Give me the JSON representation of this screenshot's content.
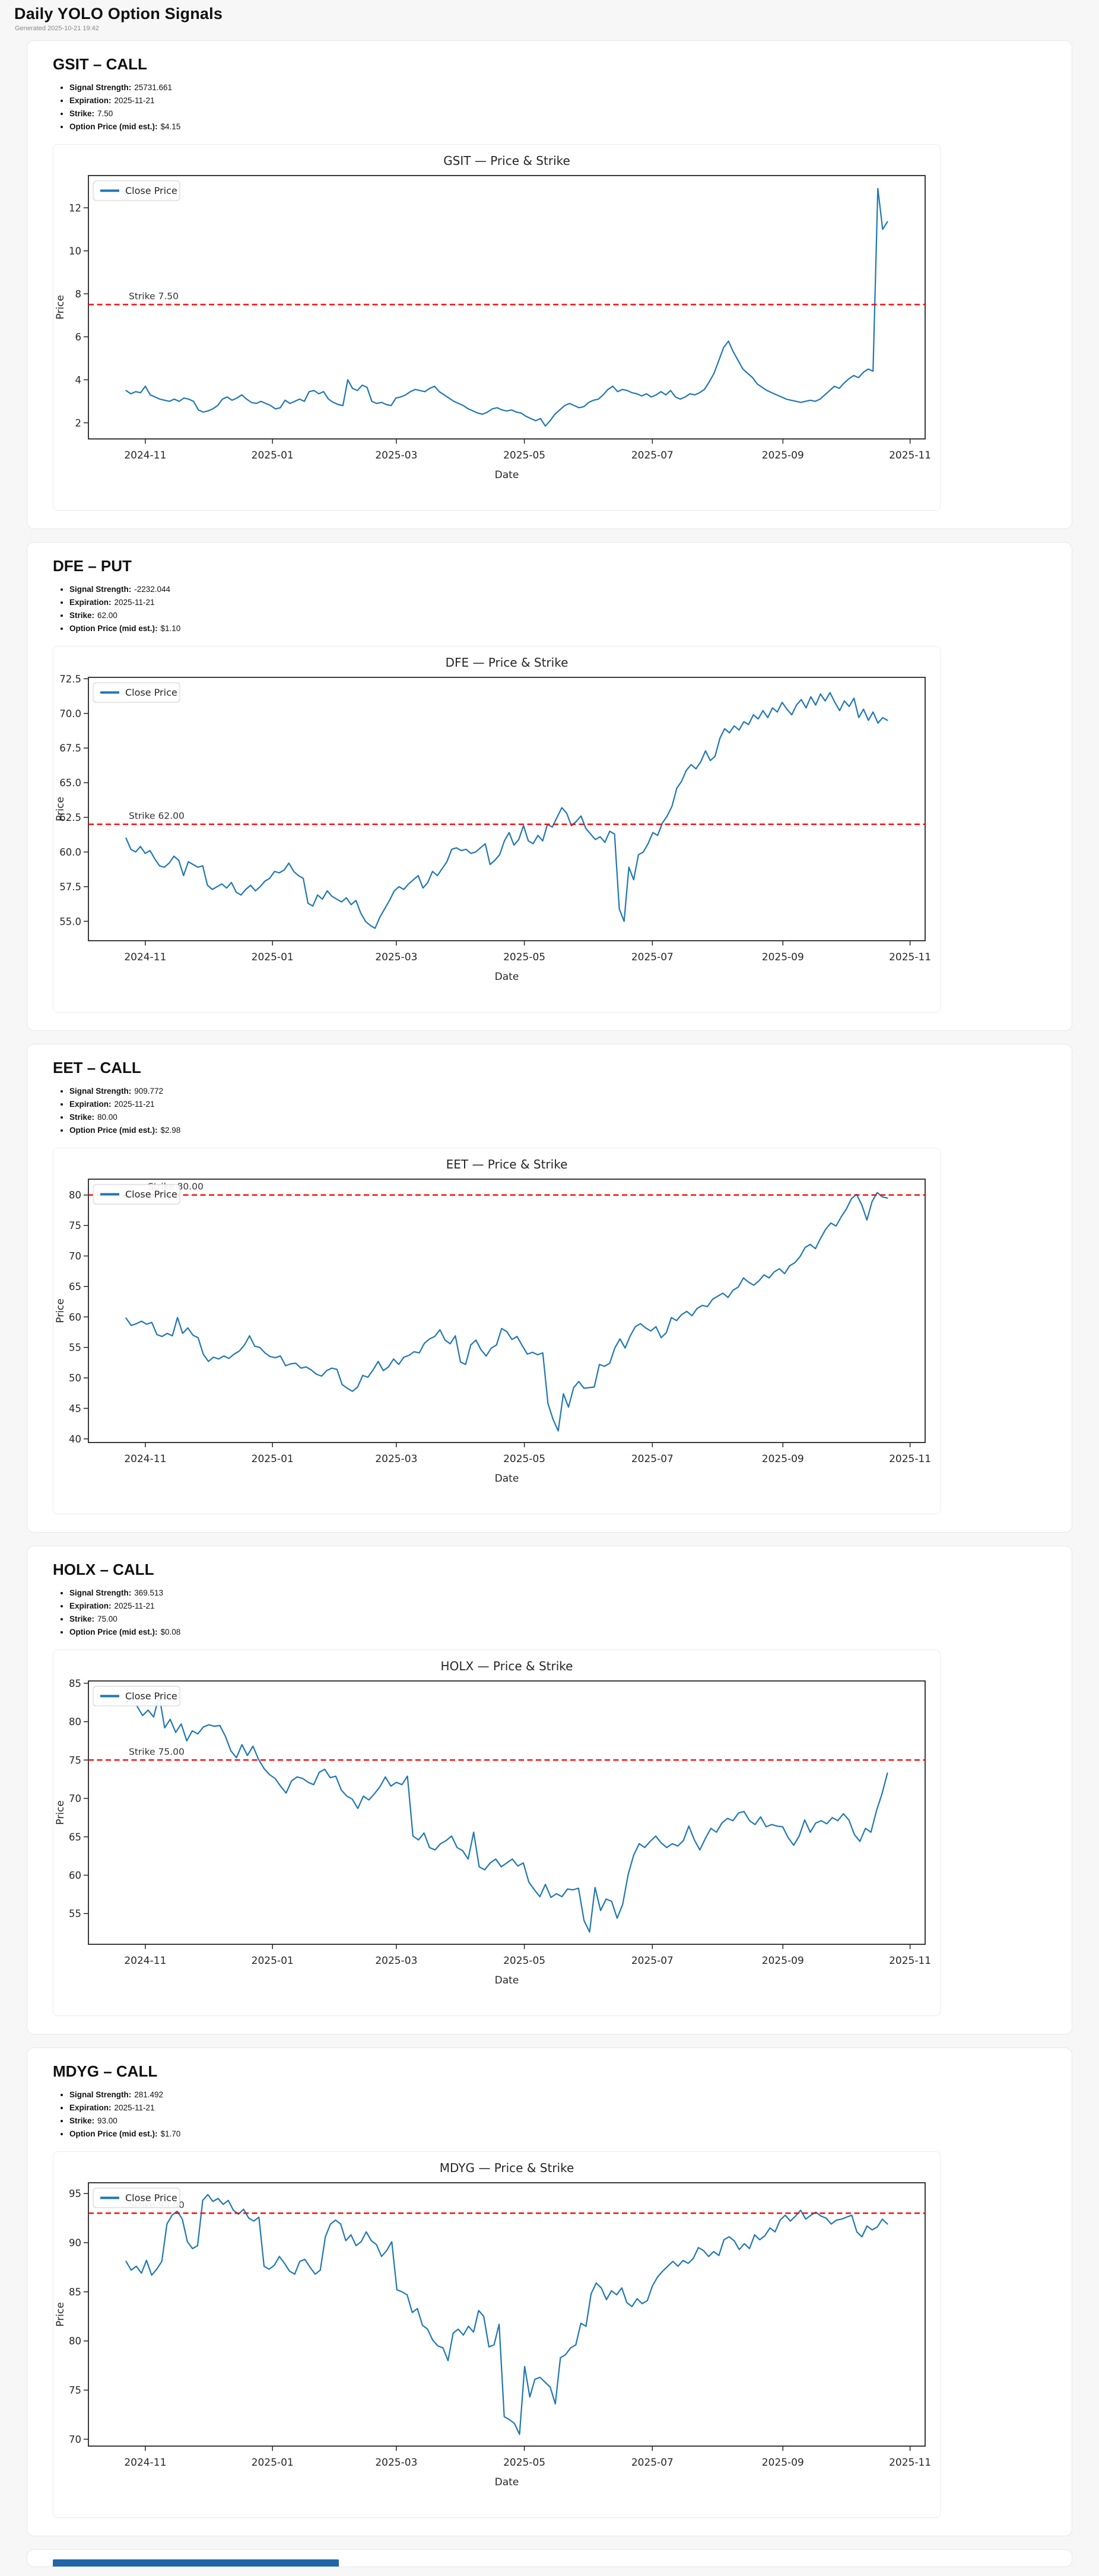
{
  "header": {
    "title": "Daily YOLO Option Signals",
    "generated": "Generated 2025-10-21 19:42"
  },
  "labels": {
    "signal_strength": "Signal Strength:",
    "expiration": "Expiration:",
    "strike": "Strike:",
    "option_price": "Option Price (mid est.):",
    "legend": "Close Price",
    "xlabel": "Date",
    "ylabel": "Price"
  },
  "colors": {
    "line": "#1f77b4",
    "strike_line": "#ff0000",
    "partial_bar": "#2066a8"
  },
  "cards": [
    {
      "title": "GSIT – CALL",
      "signal_strength": "25731.661",
      "expiration": "2025-11-21",
      "strike": "7.50",
      "option_price": "$4.15"
    },
    {
      "title": "DFE – PUT",
      "signal_strength": "-2232.044",
      "expiration": "2025-11-21",
      "strike": "62.00",
      "option_price": "$1.10"
    },
    {
      "title": "EET – CALL",
      "signal_strength": "909.772",
      "expiration": "2025-11-21",
      "strike": "80.00",
      "option_price": "$2.98"
    },
    {
      "title": "HOLX – CALL",
      "signal_strength": "369.513",
      "expiration": "2025-11-21",
      "strike": "75.00",
      "option_price": "$0.08"
    },
    {
      "title": "MDYG – CALL",
      "signal_strength": "281.492",
      "expiration": "2025-11-21",
      "strike": "93.00",
      "option_price": "$1.70"
    }
  ],
  "chart_data": [
    {
      "type": "line",
      "title": "GSIT — Price & Strike",
      "xlabel": "Date",
      "ylabel": "Price",
      "legend": "Close Price",
      "line_color": "#1f77b4",
      "strike_color": "#ff0000",
      "ylim": [
        1.25,
        13.5
      ],
      "yticks": [
        [
          2,
          "2"
        ],
        [
          4,
          "4"
        ],
        [
          6,
          "6"
        ],
        [
          8,
          "8"
        ],
        [
          10,
          "10"
        ],
        [
          12,
          "12"
        ]
      ],
      "xticks": [
        {
          "f": 0.068,
          "label": "2024-11"
        },
        {
          "f": 0.22,
          "label": "2025-01"
        },
        {
          "f": 0.368,
          "label": "2025-03"
        },
        {
          "f": 0.521,
          "label": "2025-05"
        },
        {
          "f": 0.674,
          "label": "2025-07"
        },
        {
          "f": 0.83,
          "label": "2025-09"
        },
        {
          "f": 0.982,
          "label": "2025-11"
        }
      ],
      "strike": 7.5,
      "strike_label": "Strike 7.50",
      "strike_label_dx": 68,
      "series_start": 0.045,
      "series_end": 0.955,
      "values": [
        3.5,
        3.35,
        3.45,
        3.4,
        3.7,
        3.3,
        3.2,
        3.1,
        3.05,
        3.0,
        3.1,
        3.0,
        3.15,
        3.1,
        3.0,
        2.6,
        2.5,
        2.55,
        2.65,
        2.8,
        3.1,
        3.2,
        3.05,
        3.15,
        3.3,
        3.1,
        2.95,
        2.9,
        3.0,
        2.9,
        2.8,
        2.65,
        2.7,
        3.05,
        2.9,
        3.0,
        3.1,
        3.0,
        3.45,
        3.5,
        3.35,
        3.45,
        3.1,
        2.95,
        2.85,
        2.8,
        4.0,
        3.6,
        3.5,
        3.75,
        3.65,
        3.0,
        2.9,
        2.95,
        2.85,
        2.8,
        3.15,
        3.2,
        3.3,
        3.45,
        3.55,
        3.5,
        3.45,
        3.6,
        3.7,
        3.45,
        3.3,
        3.15,
        3.0,
        2.9,
        2.8,
        2.65,
        2.55,
        2.45,
        2.4,
        2.5,
        2.65,
        2.7,
        2.6,
        2.55,
        2.6,
        2.5,
        2.45,
        2.3,
        2.2,
        2.1,
        2.2,
        1.85,
        2.1,
        2.4,
        2.6,
        2.8,
        2.9,
        2.8,
        2.7,
        2.75,
        2.95,
        3.05,
        3.1,
        3.3,
        3.55,
        3.7,
        3.45,
        3.55,
        3.5,
        3.4,
        3.35,
        3.25,
        3.35,
        3.2,
        3.3,
        3.45,
        3.3,
        3.5,
        3.2,
        3.1,
        3.2,
        3.35,
        3.3,
        3.4,
        3.55,
        3.9,
        4.3,
        4.9,
        5.5,
        5.8,
        5.3,
        4.9,
        4.5,
        4.3,
        4.1,
        3.8,
        3.65,
        3.5,
        3.4,
        3.3,
        3.2,
        3.1,
        3.05,
        3.0,
        2.95,
        3.0,
        3.05,
        3.0,
        3.1,
        3.3,
        3.5,
        3.7,
        3.6,
        3.85,
        4.05,
        4.2,
        4.1,
        4.35,
        4.5,
        4.4,
        12.9,
        11.0,
        11.35
      ]
    },
    {
      "type": "line",
      "title": "DFE — Price & Strike",
      "xlabel": "Date",
      "ylabel": "Price",
      "legend": "Close Price",
      "line_color": "#1f77b4",
      "strike_color": "#ff0000",
      "ylim": [
        53.6,
        72.6
      ],
      "yticks": [
        [
          55,
          "55.0"
        ],
        [
          57.5,
          "57.5"
        ],
        [
          60,
          "60.0"
        ],
        [
          62.5,
          "62.5"
        ],
        [
          65,
          "65.0"
        ],
        [
          67.5,
          "67.5"
        ],
        [
          70,
          "70.0"
        ],
        [
          72.5,
          "72.5"
        ]
      ],
      "xticks": [
        {
          "f": 0.068,
          "label": "2024-11"
        },
        {
          "f": 0.22,
          "label": "2025-01"
        },
        {
          "f": 0.368,
          "label": "2025-03"
        },
        {
          "f": 0.521,
          "label": "2025-05"
        },
        {
          "f": 0.674,
          "label": "2025-07"
        },
        {
          "f": 0.83,
          "label": "2025-09"
        },
        {
          "f": 0.982,
          "label": "2025-11"
        }
      ],
      "strike": 62,
      "strike_label": "Strike 62.00",
      "strike_label_dx": 68,
      "series_start": 0.045,
      "series_end": 0.955,
      "values": [
        61.0,
        60.2,
        60.0,
        60.4,
        59.9,
        60.1,
        59.5,
        59.0,
        58.9,
        59.2,
        59.7,
        59.4,
        58.3,
        59.3,
        59.1,
        58.9,
        59.0,
        57.6,
        57.3,
        57.5,
        57.7,
        57.4,
        57.8,
        57.1,
        56.9,
        57.3,
        57.6,
        57.2,
        57.5,
        57.9,
        58.1,
        58.6,
        58.5,
        58.7,
        59.2,
        58.6,
        58.3,
        58.1,
        56.3,
        56.1,
        56.9,
        56.6,
        57.2,
        56.8,
        56.6,
        56.4,
        56.7,
        56.2,
        56.5,
        55.6,
        55.0,
        54.7,
        54.5,
        55.3,
        55.9,
        56.5,
        57.2,
        57.5,
        57.3,
        57.7,
        58.0,
        58.3,
        57.4,
        57.8,
        58.6,
        58.3,
        58.8,
        59.3,
        60.2,
        60.3,
        60.1,
        60.2,
        59.9,
        60.0,
        60.3,
        60.6,
        59.1,
        59.4,
        59.8,
        60.8,
        61.4,
        60.5,
        60.9,
        61.9,
        60.8,
        60.6,
        61.2,
        60.8,
        62.0,
        61.8,
        62.5,
        63.2,
        62.8,
        61.9,
        62.2,
        62.6,
        61.7,
        61.3,
        60.9,
        61.1,
        60.7,
        61.5,
        61.3,
        55.9,
        55.0,
        58.9,
        58.0,
        59.8,
        60.0,
        60.6,
        61.4,
        61.2,
        62.1,
        62.6,
        63.3,
        64.6,
        65.1,
        65.9,
        66.3,
        66.0,
        66.5,
        67.3,
        66.6,
        66.9,
        68.2,
        68.9,
        68.6,
        69.1,
        68.8,
        69.4,
        69.2,
        69.9,
        69.6,
        70.2,
        69.7,
        70.4,
        70.1,
        70.8,
        70.3,
        69.9,
        70.6,
        71.0,
        70.4,
        71.2,
        70.6,
        71.4,
        70.9,
        71.5,
        70.8,
        70.2,
        70.9,
        70.5,
        71.1,
        69.7,
        70.3,
        69.5,
        70.1,
        69.3,
        69.7,
        69.5
      ]
    },
    {
      "type": "line",
      "title": "EET — Price & Strike",
      "xlabel": "Date",
      "ylabel": "Price",
      "legend": "Close Price",
      "line_color": "#1f77b4",
      "strike_color": "#ff0000",
      "ylim": [
        39.4,
        82.6
      ],
      "yticks": [
        [
          40,
          "40"
        ],
        [
          45,
          "45"
        ],
        [
          50,
          "50"
        ],
        [
          55,
          "55"
        ],
        [
          60,
          "60"
        ],
        [
          65,
          "65"
        ],
        [
          70,
          "70"
        ],
        [
          75,
          "75"
        ],
        [
          80,
          "80"
        ]
      ],
      "xticks": [
        {
          "f": 0.068,
          "label": "2024-11"
        },
        {
          "f": 0.22,
          "label": "2025-01"
        },
        {
          "f": 0.368,
          "label": "2025-03"
        },
        {
          "f": 0.521,
          "label": "2025-05"
        },
        {
          "f": 0.674,
          "label": "2025-07"
        },
        {
          "f": 0.83,
          "label": "2025-09"
        },
        {
          "f": 0.982,
          "label": "2025-11"
        }
      ],
      "strike": 80,
      "strike_label": "Strike 80.00",
      "strike_label_dx": 100,
      "series_start": 0.045,
      "series_end": 0.955,
      "values": [
        59.8,
        58.6,
        58.9,
        59.3,
        58.8,
        59.1,
        57.1,
        56.8,
        57.3,
        56.9,
        59.9,
        57.3,
        58.2,
        57.0,
        56.6,
        53.9,
        52.7,
        53.4,
        53.1,
        53.6,
        53.2,
        53.9,
        54.4,
        55.4,
        56.9,
        55.2,
        55.0,
        54.1,
        53.5,
        53.3,
        53.6,
        52.0,
        52.3,
        52.4,
        51.6,
        51.8,
        51.3,
        50.6,
        50.3,
        51.2,
        51.6,
        51.4,
        48.9,
        48.3,
        47.8,
        48.5,
        50.4,
        50.1,
        51.3,
        52.7,
        51.2,
        51.8,
        53.1,
        52.2,
        53.4,
        53.7,
        54.3,
        54.1,
        55.7,
        56.4,
        56.8,
        57.9,
        56.2,
        55.6,
        56.9,
        52.6,
        52.2,
        55.4,
        56.2,
        54.6,
        53.6,
        54.9,
        55.4,
        58.1,
        57.6,
        56.3,
        56.8,
        55.3,
        53.9,
        54.2,
        53.8,
        54.1,
        45.8,
        43.2,
        41.3,
        47.4,
        45.2,
        48.4,
        49.4,
        48.3,
        48.4,
        48.5,
        52.2,
        51.9,
        52.4,
        54.9,
        56.4,
        54.9,
        56.9,
        58.4,
        58.9,
        58.2,
        57.7,
        58.4,
        56.6,
        57.4,
        59.9,
        59.4,
        60.4,
        60.9,
        60.2,
        61.4,
        61.9,
        61.7,
        62.9,
        63.4,
        63.9,
        63.2,
        64.4,
        64.9,
        66.4,
        65.7,
        65.2,
        65.9,
        66.9,
        66.4,
        67.4,
        67.9,
        67.1,
        68.4,
        68.9,
        69.9,
        71.4,
        71.9,
        71.2,
        72.9,
        74.4,
        75.4,
        74.9,
        76.4,
        77.7,
        79.4,
        80.1,
        78.4,
        75.9,
        78.9,
        80.4,
        79.7,
        79.5
      ]
    },
    {
      "type": "line",
      "title": "HOLX — Price & Strike",
      "xlabel": "Date",
      "ylabel": "Price",
      "legend": "Close Price",
      "line_color": "#1f77b4",
      "strike_color": "#ff0000",
      "ylim": [
        51.0,
        85.3
      ],
      "yticks": [
        [
          55,
          "55"
        ],
        [
          60,
          "60"
        ],
        [
          65,
          "65"
        ],
        [
          70,
          "70"
        ],
        [
          75,
          "75"
        ],
        [
          80,
          "80"
        ],
        [
          85,
          "85"
        ]
      ],
      "xticks": [
        {
          "f": 0.068,
          "label": "2024-11"
        },
        {
          "f": 0.22,
          "label": "2025-01"
        },
        {
          "f": 0.368,
          "label": "2025-03"
        },
        {
          "f": 0.521,
          "label": "2025-05"
        },
        {
          "f": 0.674,
          "label": "2025-07"
        },
        {
          "f": 0.83,
          "label": "2025-09"
        },
        {
          "f": 0.982,
          "label": "2025-11"
        }
      ],
      "strike": 75,
      "strike_label": "Strike 75.00",
      "strike_label_dx": 68,
      "series_start": 0.045,
      "series_end": 0.955,
      "values": [
        82.5,
        83.2,
        82.0,
        80.8,
        81.5,
        80.6,
        83.4,
        79.2,
        80.3,
        78.6,
        79.7,
        77.5,
        78.8,
        78.4,
        79.3,
        79.6,
        79.4,
        79.5,
        78.1,
        76.2,
        75.3,
        77.0,
        75.6,
        76.8,
        75.1,
        73.9,
        73.1,
        72.6,
        71.6,
        70.7,
        72.3,
        72.8,
        72.6,
        72.1,
        71.8,
        73.4,
        73.8,
        72.7,
        72.9,
        71.1,
        70.3,
        69.9,
        68.7,
        70.3,
        69.8,
        70.6,
        71.5,
        72.8,
        71.6,
        72.1,
        71.8,
        72.9,
        65.1,
        64.6,
        65.5,
        63.6,
        63.3,
        64.1,
        64.5,
        65.1,
        63.6,
        63.2,
        62.1,
        65.6,
        61.1,
        60.7,
        61.6,
        62.1,
        61.1,
        61.6,
        62.1,
        61.2,
        61.6,
        59.1,
        58.1,
        57.2,
        58.8,
        57.1,
        57.6,
        57.2,
        58.2,
        58.1,
        58.3,
        54.1,
        52.6,
        58.4,
        55.4,
        56.9,
        56.6,
        54.4,
        56.2,
        60.1,
        62.6,
        64.1,
        63.6,
        64.4,
        65.1,
        64.2,
        63.6,
        64.1,
        63.8,
        64.5,
        66.4,
        64.6,
        63.3,
        64.8,
        66.1,
        65.6,
        66.8,
        67.4,
        67.1,
        68.1,
        68.3,
        67.1,
        66.6,
        67.6,
        66.3,
        66.6,
        66.4,
        66.3,
        64.9,
        63.9,
        65.1,
        67.2,
        65.6,
        66.8,
        67.1,
        66.7,
        67.5,
        67.1,
        68.0,
        67.2,
        65.3,
        64.4,
        66.1,
        65.6,
        68.4,
        70.6,
        73.3
      ]
    },
    {
      "type": "line",
      "title": "MDYG — Price & Strike",
      "xlabel": "Date",
      "ylabel": "Price",
      "legend": "Close Price",
      "line_color": "#1f77b4",
      "strike_color": "#ff0000",
      "ylim": [
        69.3,
        96.1
      ],
      "yticks": [
        [
          70,
          "70"
        ],
        [
          75,
          "75"
        ],
        [
          80,
          "80"
        ],
        [
          85,
          "85"
        ],
        [
          90,
          "90"
        ],
        [
          95,
          "95"
        ]
      ],
      "xticks": [
        {
          "f": 0.068,
          "label": "2024-11"
        },
        {
          "f": 0.22,
          "label": "2025-01"
        },
        {
          "f": 0.368,
          "label": "2025-03"
        },
        {
          "f": 0.521,
          "label": "2025-05"
        },
        {
          "f": 0.674,
          "label": "2025-07"
        },
        {
          "f": 0.83,
          "label": "2025-09"
        },
        {
          "f": 0.982,
          "label": "2025-11"
        }
      ],
      "strike": 93,
      "strike_label": "Strike 93.00",
      "strike_label_dx": 68,
      "series_start": 0.045,
      "series_end": 0.955,
      "values": [
        88.1,
        87.2,
        87.6,
        86.9,
        88.2,
        86.7,
        87.3,
        88.1,
        91.9,
        92.8,
        93.2,
        92.4,
        90.1,
        89.4,
        89.7,
        94.3,
        94.9,
        94.2,
        94.5,
        93.9,
        94.3,
        93.3,
        92.9,
        93.4,
        92.5,
        92.2,
        92.6,
        87.6,
        87.3,
        87.7,
        88.6,
        87.9,
        87.1,
        86.8,
        88.1,
        88.3,
        87.5,
        86.8,
        87.2,
        90.6,
        91.9,
        92.3,
        91.9,
        90.2,
        90.8,
        89.7,
        90.1,
        91.1,
        90.2,
        89.8,
        88.6,
        89.2,
        90.1,
        85.2,
        85.0,
        84.7,
        82.9,
        83.3,
        81.6,
        81.2,
        80.1,
        79.5,
        79.3,
        78.0,
        80.8,
        81.2,
        80.6,
        81.5,
        80.9,
        83.1,
        82.5,
        79.4,
        79.6,
        81.7,
        72.3,
        72.0,
        71.6,
        70.5,
        77.4,
        74.3,
        76.1,
        76.3,
        75.8,
        75.3,
        73.6,
        78.3,
        78.6,
        79.3,
        79.6,
        81.8,
        81.5,
        84.8,
        85.9,
        85.4,
        84.2,
        85.1,
        84.7,
        85.4,
        83.9,
        83.5,
        84.3,
        83.8,
        84.1,
        85.6,
        86.5,
        87.1,
        87.6,
        88.1,
        87.6,
        88.2,
        87.9,
        88.4,
        89.5,
        89.2,
        88.6,
        89.1,
        88.7,
        90.3,
        90.6,
        90.2,
        89.3,
        89.9,
        89.4,
        90.8,
        90.3,
        90.7,
        91.5,
        91.1,
        92.3,
        92.8,
        92.2,
        92.7,
        93.3,
        92.4,
        92.8,
        93.1,
        92.7,
        92.5,
        91.9,
        92.3,
        92.4,
        92.6,
        92.8,
        91.1,
        90.6,
        91.7,
        91.3,
        91.6,
        92.4,
        91.9
      ]
    }
  ]
}
